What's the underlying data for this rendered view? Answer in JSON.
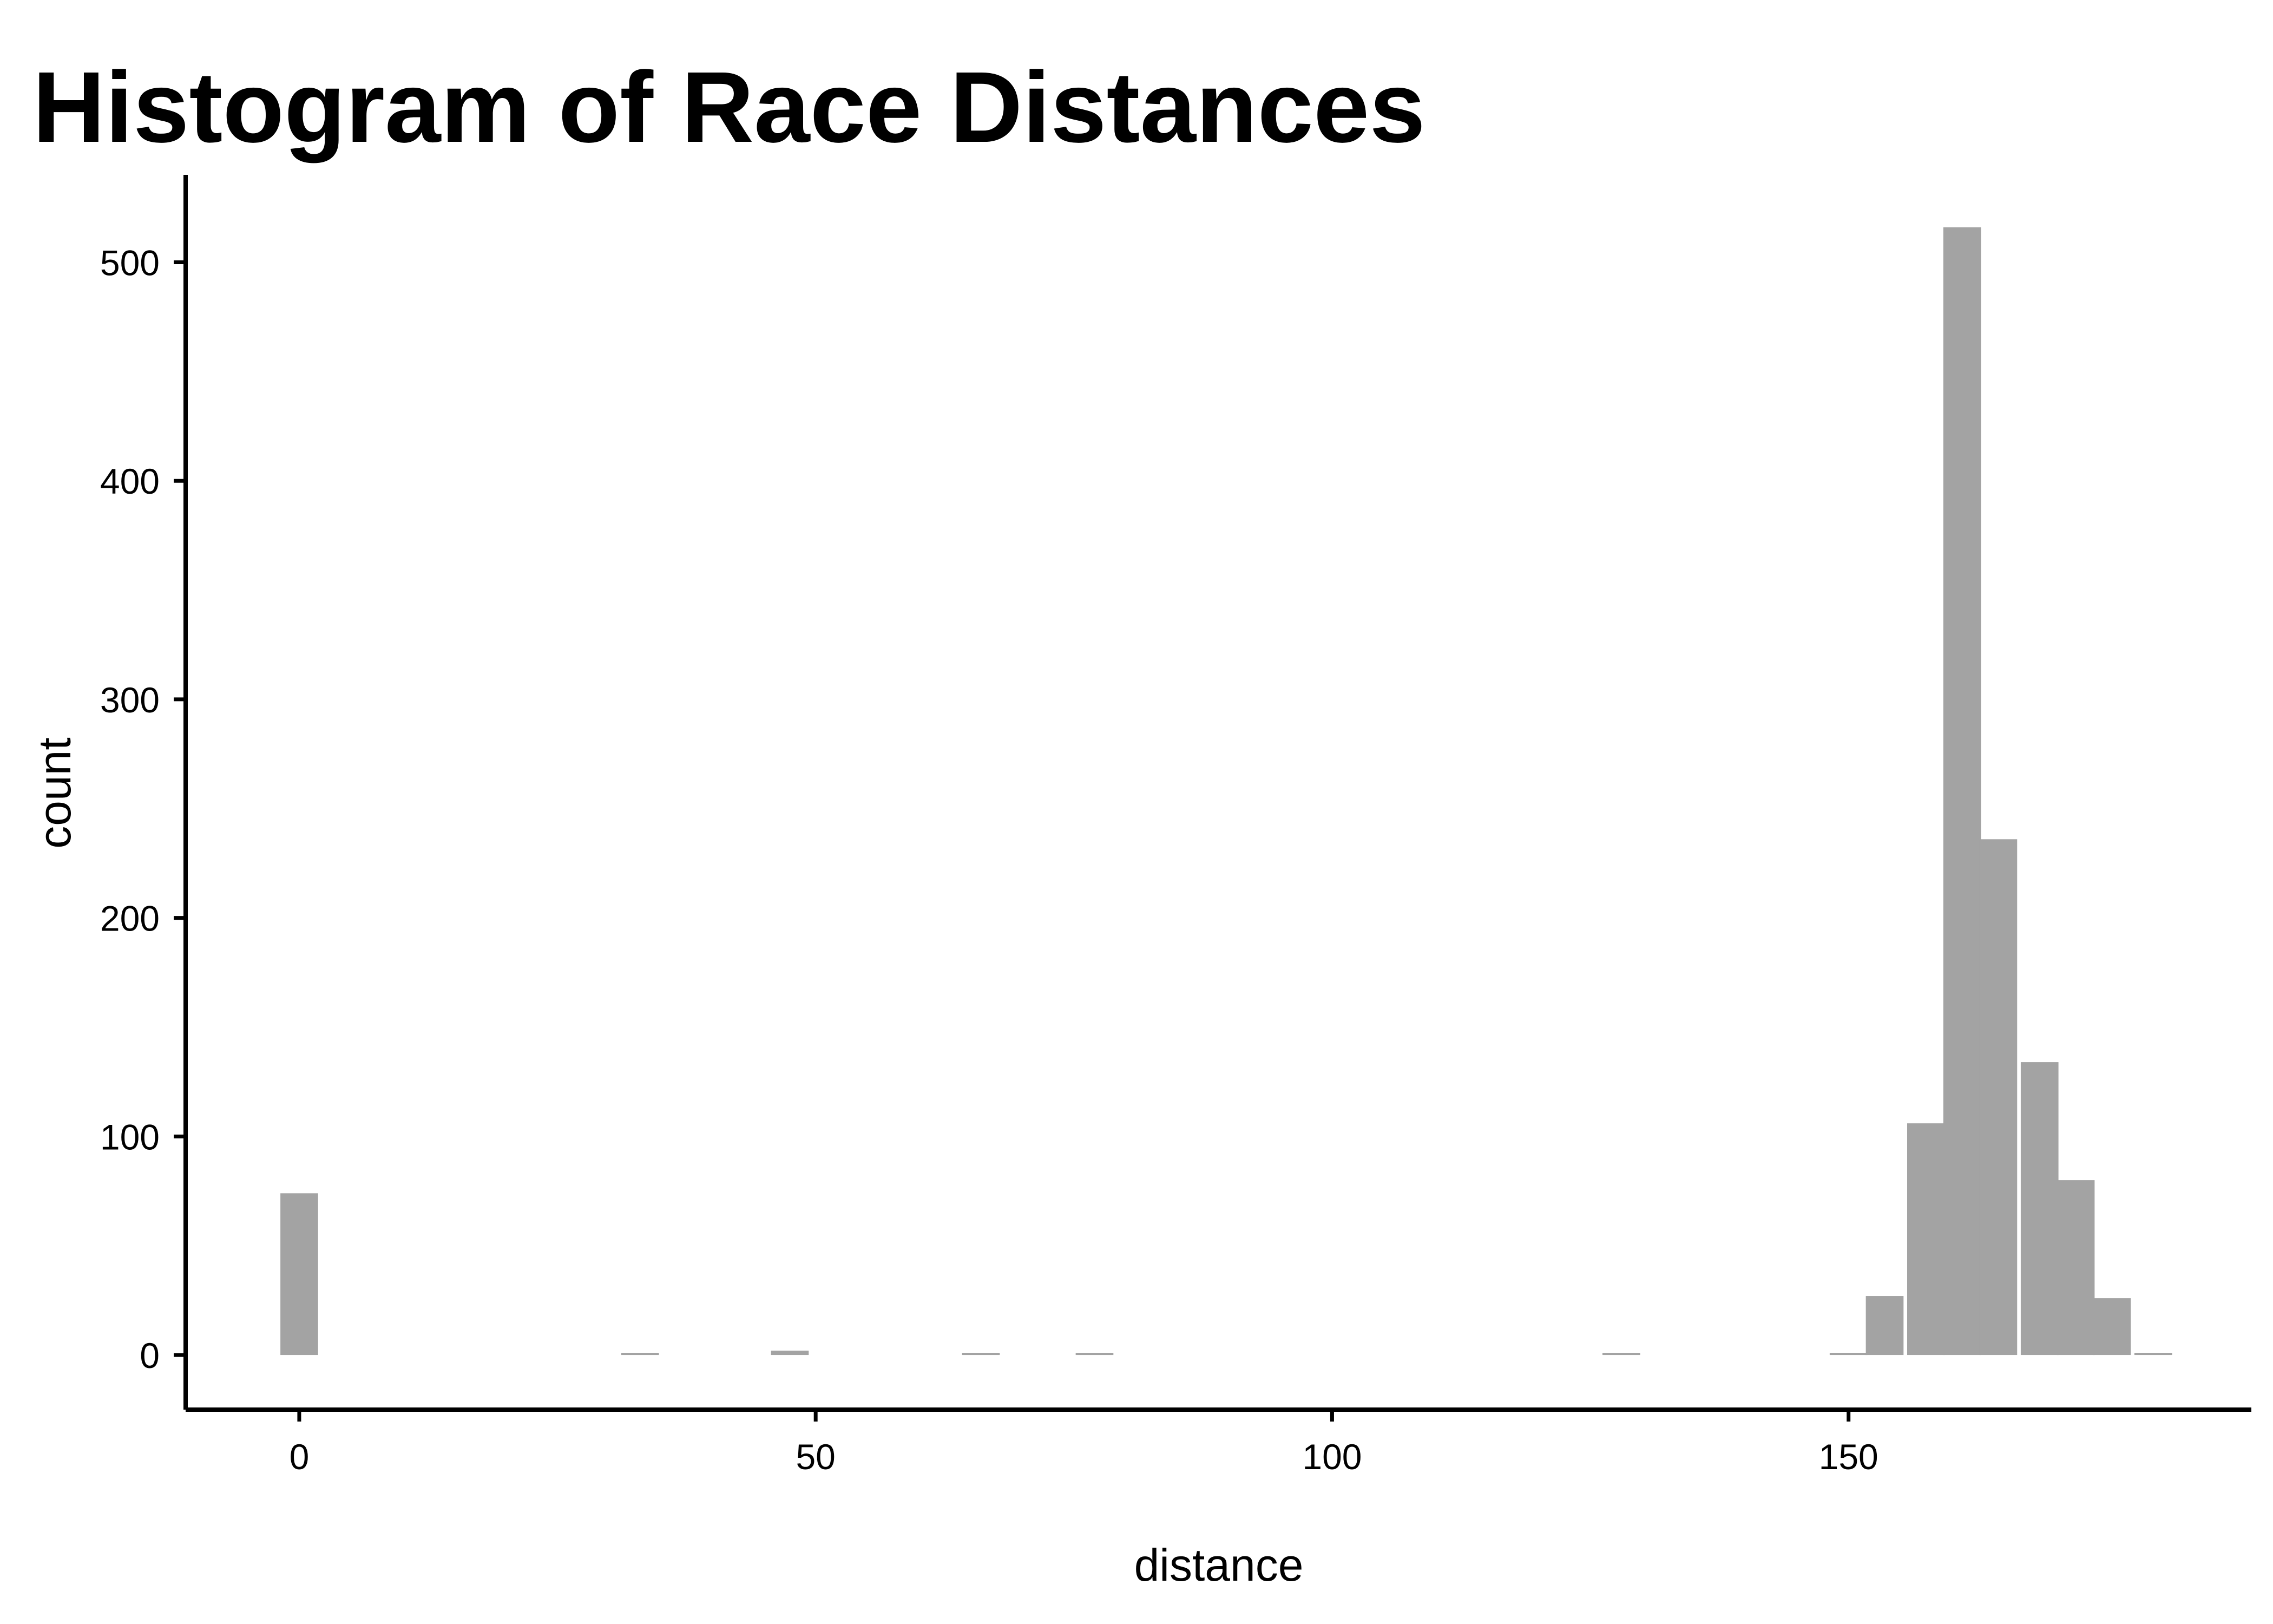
{
  "chart_data": {
    "type": "bar",
    "title": "Histogram of Race Distances",
    "xlabel": "distance",
    "ylabel": "count",
    "xlim": [
      -11,
      189
    ],
    "ylim": [
      -25,
      540
    ],
    "x_ticks": [
      0,
      50,
      100,
      150
    ],
    "y_ticks": [
      0,
      100,
      200,
      300,
      400,
      500
    ],
    "grid": false,
    "legend": "none",
    "bar_color": "#A3A3A3",
    "bin_width": 3.65,
    "bins": [
      {
        "x": 0,
        "count": 74
      },
      {
        "x": 33,
        "count": 1
      },
      {
        "x": 47.5,
        "count": 2
      },
      {
        "x": 66,
        "count": 1
      },
      {
        "x": 77,
        "count": 1
      },
      {
        "x": 128,
        "count": 1
      },
      {
        "x": 150,
        "count": 1
      },
      {
        "x": 153.5,
        "count": 27
      },
      {
        "x": 157.5,
        "count": 106
      },
      {
        "x": 161,
        "count": 516
      },
      {
        "x": 164.5,
        "count": 236
      },
      {
        "x": 168.5,
        "count": 134
      },
      {
        "x": 172,
        "count": 80
      },
      {
        "x": 175.5,
        "count": 26
      },
      {
        "x": 179.5,
        "count": 1
      }
    ]
  }
}
